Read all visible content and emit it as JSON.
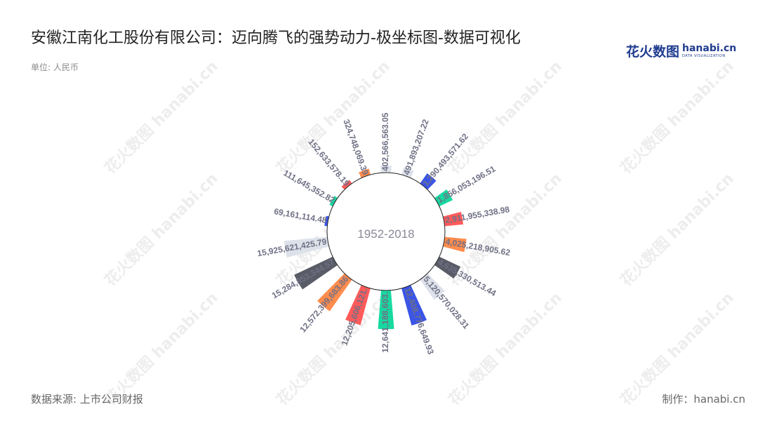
{
  "title": "安徽江南化工股份有限公司：迈向腾飞的强势动力-极坐标图-数据可视化",
  "unit": "单位: 人民币",
  "logo": {
    "cn": "花火数图",
    "en": "hanabi.cn",
    "tagline": "DATA VISUALIZATION"
  },
  "watermark_text": "花火数图 hanabi.cn",
  "source": "数据来源: 上市公司财报",
  "credit": "制作：hanabi.cn",
  "chart_data": {
    "type": "bar",
    "coordinate": "polar",
    "center_label": "1952-2018",
    "values": [
      402566563.05,
      491893207.22,
      1290493571.62,
      1856053196.51,
      2911955338.98,
      4025218905.62,
      4635330513.44,
      5120570028.31,
      12408776649.93,
      12641188603.0,
      12205606121.0,
      12572399683.86,
      15284853344.57,
      15925621425.79,
      69161114.48,
      111645352.82,
      152633578.19,
      324748069.39
    ],
    "labels": [
      "402,566,563.05",
      "491,893,207.22",
      "1,290,493,571.62",
      "1,856,053,196.51",
      "2,911,955,338.98",
      "4,025,218,905.62",
      "4,635,330,513.44",
      "5,120,570,028.31",
      "12,408,776,649.93",
      "12,641,188,603.",
      "12,205,606,121.",
      "12,572,399,683.86",
      "15,284,853,344.57",
      "15,925,621,425.79",
      "69,161,114.48",
      "111,645,352.82",
      "152,633,578.19",
      "324,748,069.39"
    ],
    "colors": [
      "#dde1ea",
      "#dde1ea",
      "#3b55e6",
      "#17d9a0",
      "#ff5b5b",
      "#ff8c4d",
      "#595b66",
      "#dde1ea",
      "#3b55e6",
      "#17d9a0",
      "#ff5b5b",
      "#ff8c4d",
      "#595b66",
      "#dde1ea",
      "#3b55e6",
      "#17d9a0",
      "#ff5b5b",
      "#ff8c4d"
    ],
    "label_color": "#6f7085",
    "axis_color": "#222222"
  }
}
